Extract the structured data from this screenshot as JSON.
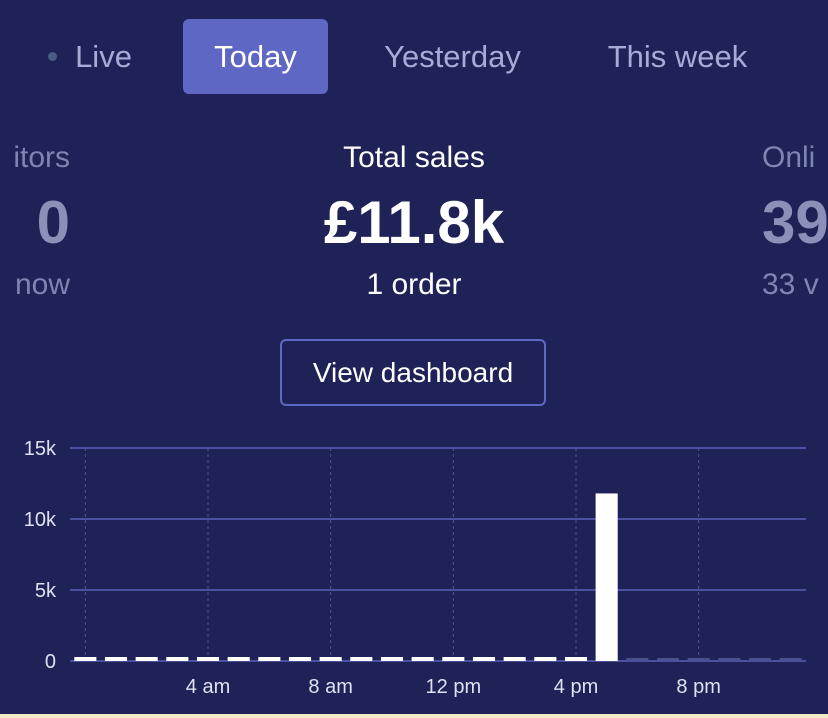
{
  "tabs": {
    "live": "Live",
    "today": "Today",
    "yesterday": "Yesterday",
    "week": "This week"
  },
  "metrics": {
    "left": {
      "label": "itors",
      "value": "0",
      "sub": "now"
    },
    "center": {
      "label": "Total sales",
      "value": "£11.8k",
      "sub": "1 order"
    },
    "right": {
      "label": "Onli",
      "value": "39",
      "sub": "33 v"
    }
  },
  "dashboard_button": "View dashboard",
  "colors": {
    "background": "#1e2257",
    "accent": "#5f67c4",
    "bar": "#ffffff",
    "muted": "#7f84b0"
  },
  "chart_data": {
    "type": "bar",
    "title": "",
    "xlabel": "",
    "ylabel": "",
    "ylim": [
      0,
      15000
    ],
    "yticks": [
      0,
      5000,
      10000,
      15000
    ],
    "ytick_labels": [
      "0",
      "5k",
      "10k",
      "15k"
    ],
    "xtick_labels": [
      "4 am",
      "8 am",
      "12 pm",
      "4 pm",
      "8 pm"
    ],
    "xtick_hours": [
      4,
      8,
      12,
      16,
      20
    ],
    "categories_hours": [
      0,
      1,
      2,
      3,
      4,
      5,
      6,
      7,
      8,
      9,
      10,
      11,
      12,
      13,
      14,
      15,
      16,
      17,
      18,
      19,
      20,
      21,
      22,
      23
    ],
    "values": [
      0,
      0,
      0,
      0,
      0,
      0,
      0,
      0,
      0,
      0,
      0,
      0,
      0,
      0,
      0,
      0,
      0,
      11800,
      null,
      null,
      null,
      null,
      null,
      null
    ],
    "grid": true
  }
}
